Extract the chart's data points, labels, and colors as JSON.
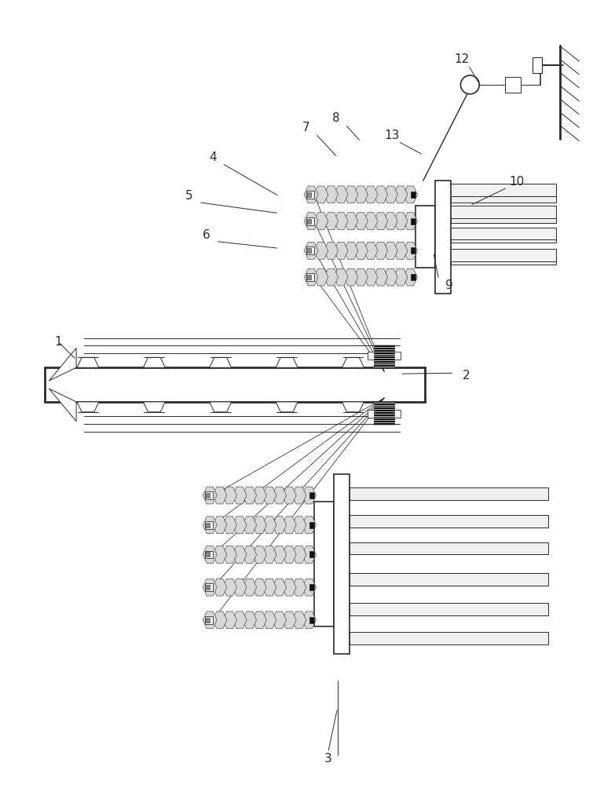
{
  "bg_color": "#ffffff",
  "line_color": "#2a2a2a",
  "gray1": "#aaaaaa",
  "gray2": "#cccccc",
  "dark": "#111111",
  "label_fontsize": 11,
  "fig_width": 7.55,
  "fig_height": 10.0
}
